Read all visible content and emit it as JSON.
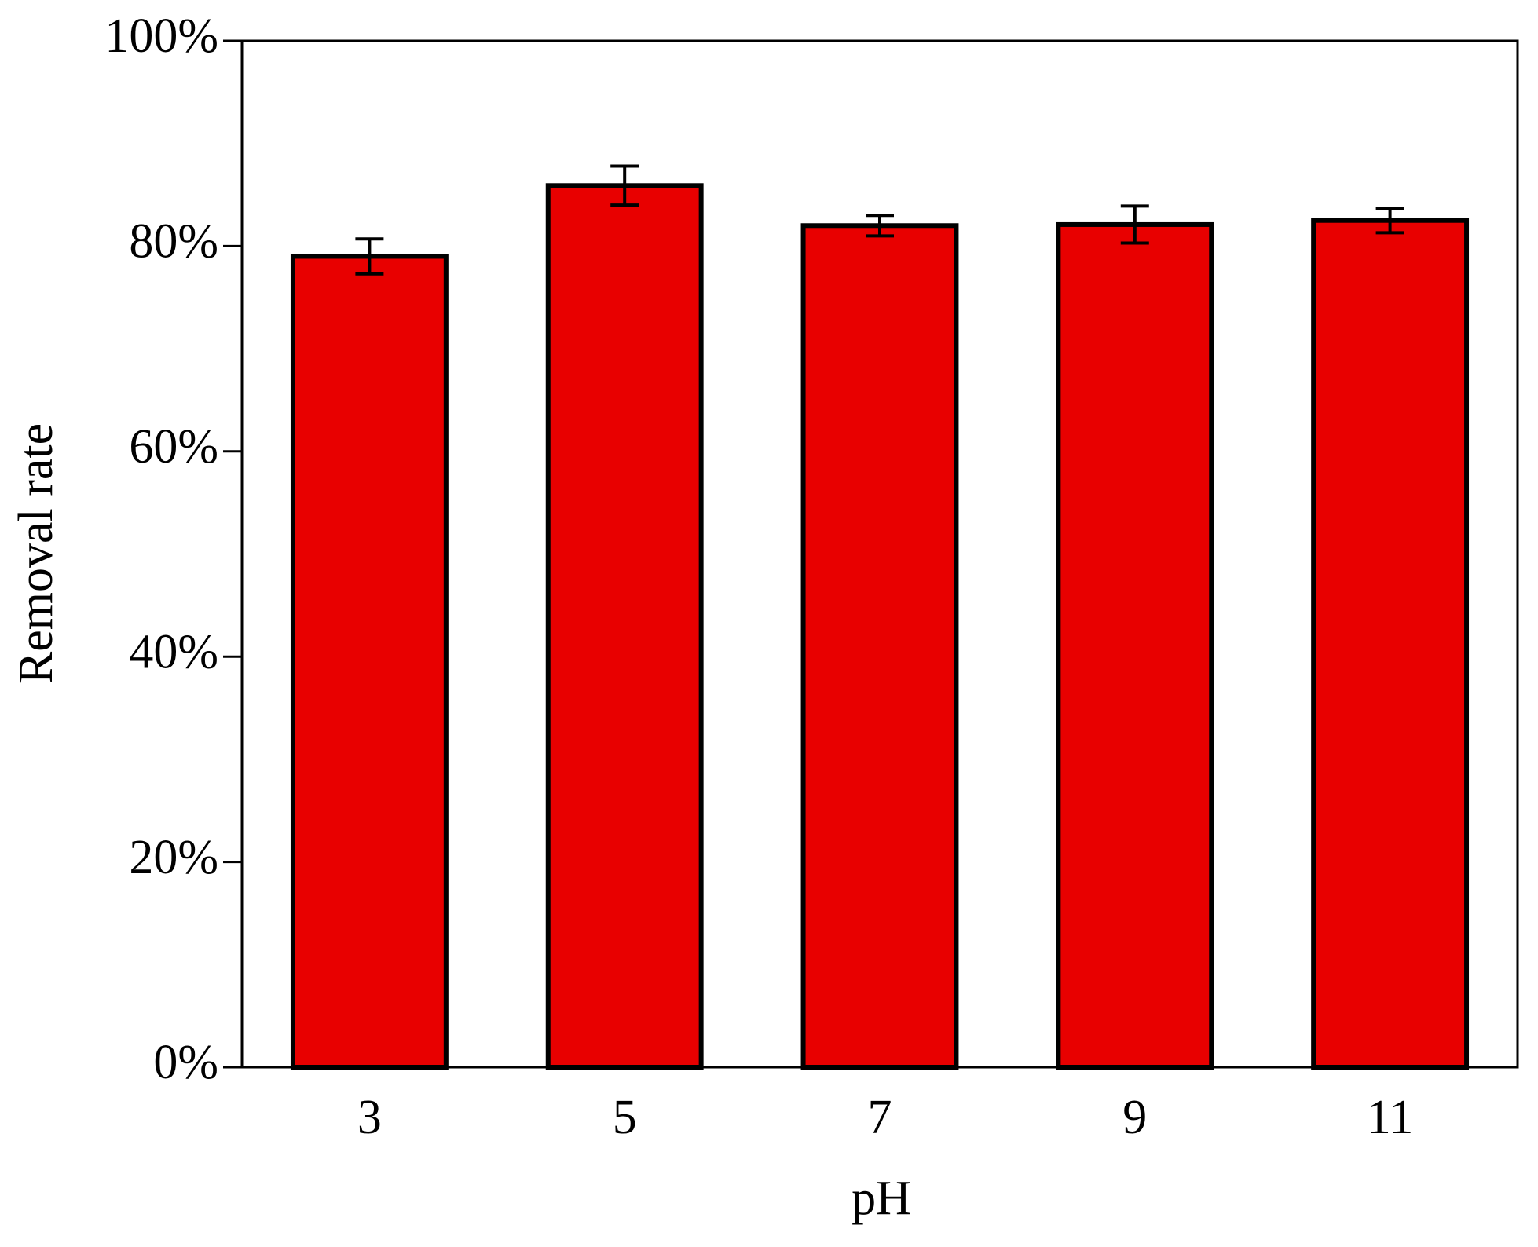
{
  "chart_data": {
    "type": "bar",
    "x_label": "pH",
    "y_label": "Removal rate",
    "categories": [
      "3",
      "5",
      "7",
      "9",
      "11"
    ],
    "values": [
      79.0,
      85.9,
      82.0,
      82.1,
      82.5
    ],
    "errors": [
      1.7,
      1.9,
      1.0,
      1.8,
      1.2
    ],
    "color": "#e80000",
    "ylim": [
      0,
      100
    ],
    "yticks": [
      {
        "value": 0,
        "label": "0%"
      },
      {
        "value": 20,
        "label": "20%"
      },
      {
        "value": 40,
        "label": "40%"
      },
      {
        "value": 60,
        "label": "60%"
      },
      {
        "value": 80,
        "label": "80%"
      },
      {
        "value": 100,
        "label": "100%"
      }
    ]
  }
}
